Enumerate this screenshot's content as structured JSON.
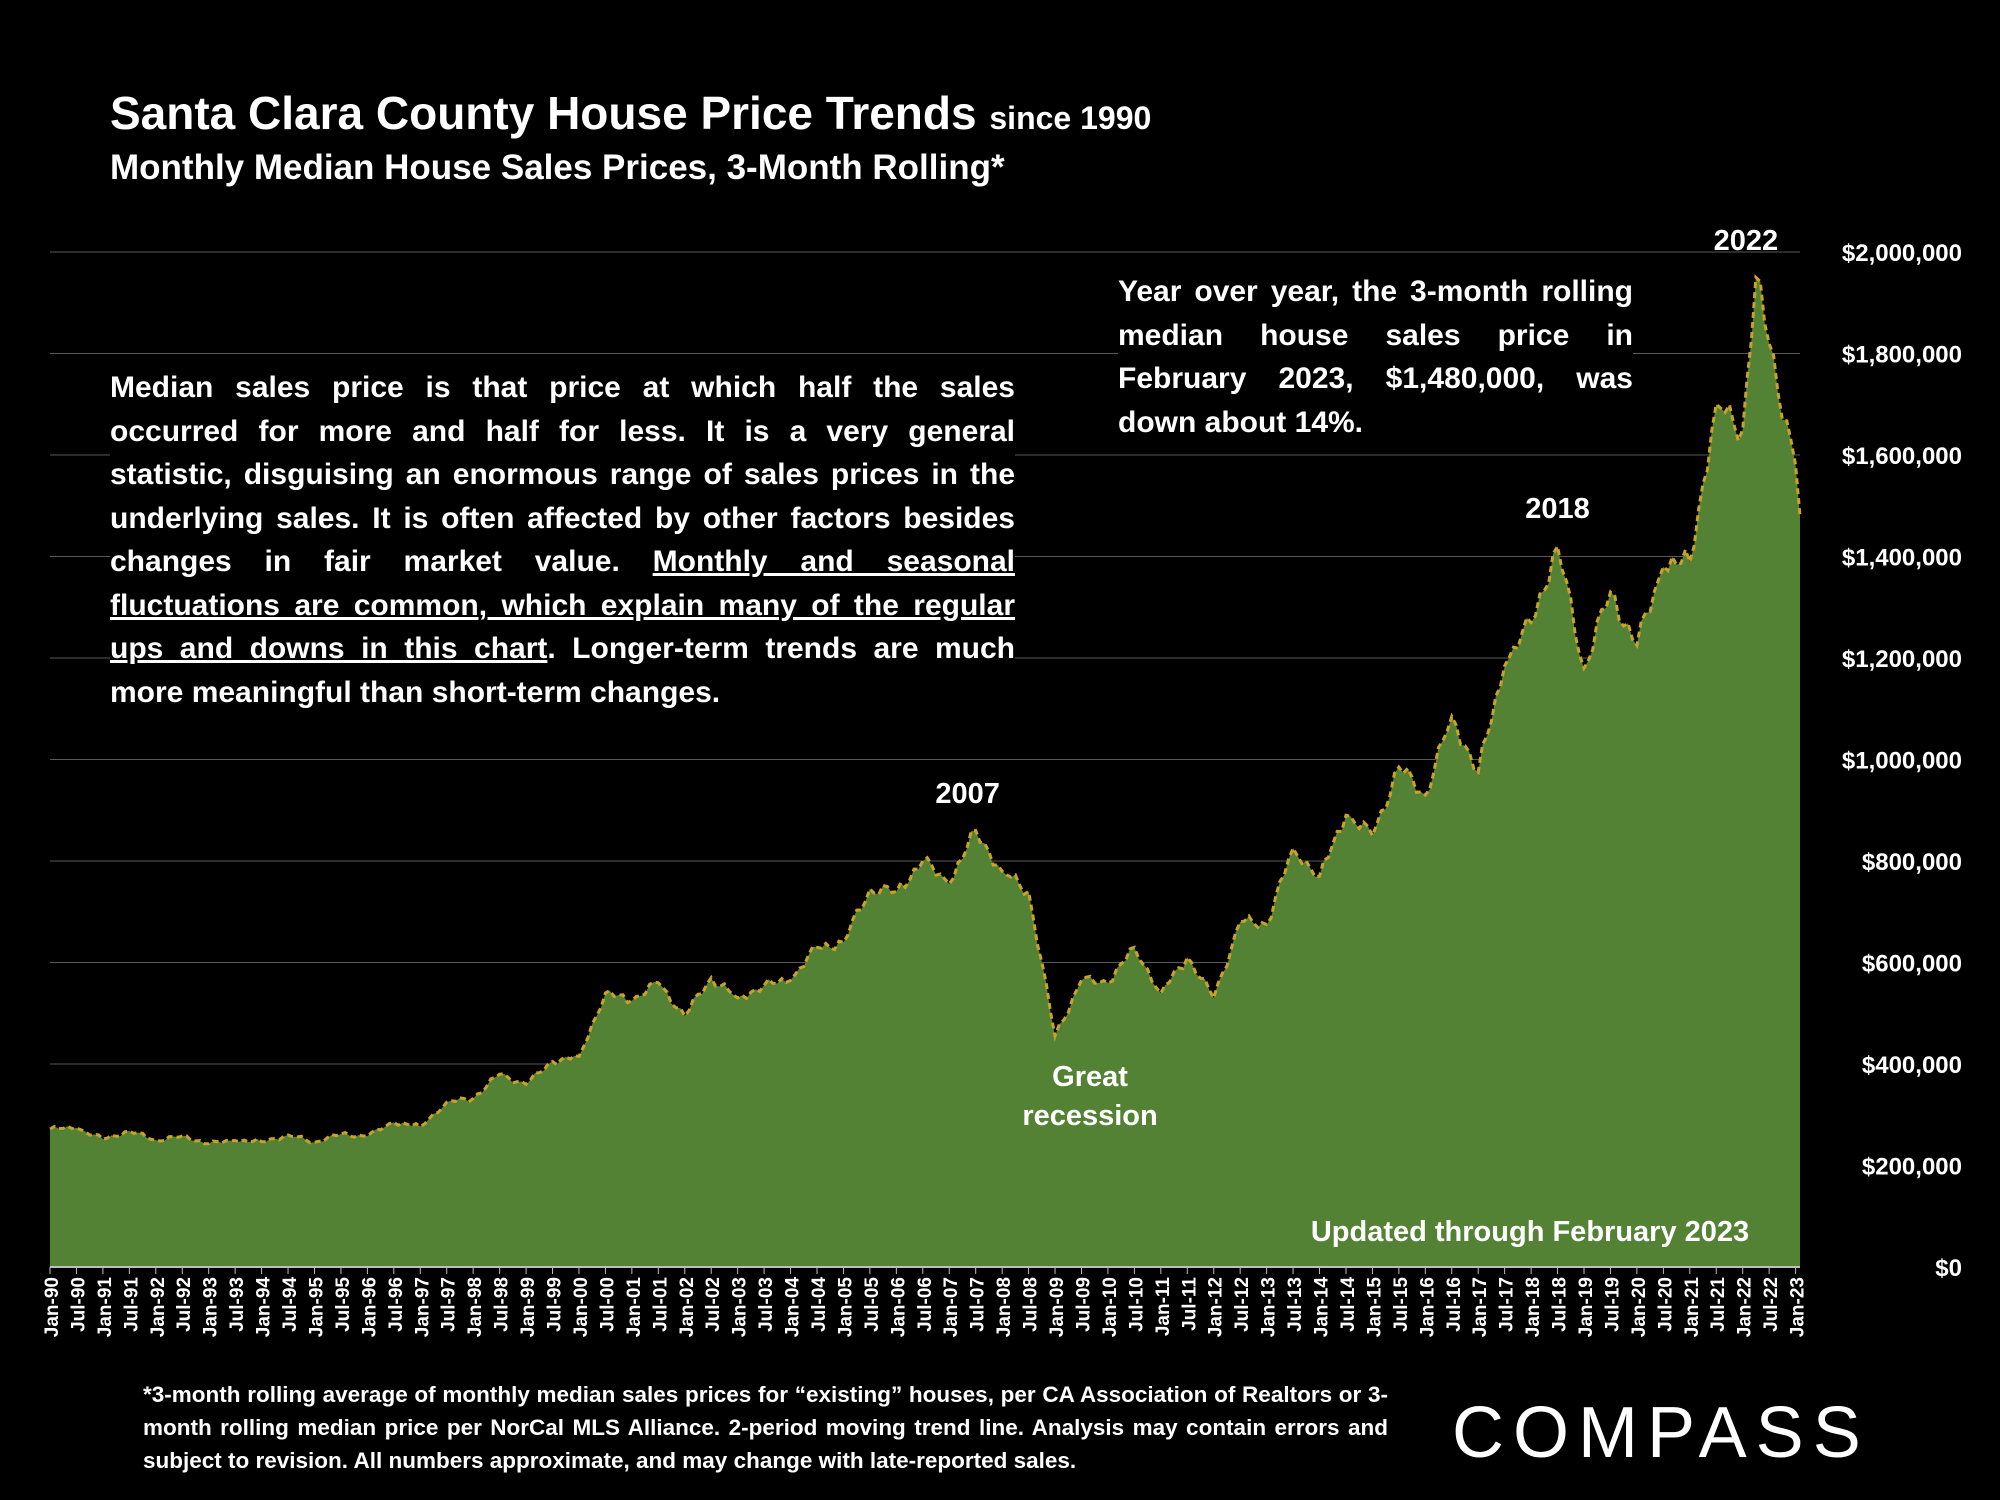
{
  "header": {
    "title": "Santa Clara County House Price Trends",
    "title_suffix": "since 1990",
    "subtitle": "Monthly Median House Sales Prices, 3-Month Rolling*"
  },
  "notes": {
    "left_plain": "Median sales price is that price at which half the sales occurred for more and half for less. It is a very general statistic, disguising an enormous range of sales prices in the underlying sales. It is often affected by other factors besides changes in fair market value. ",
    "left_underlined": "Monthly and seasonal fluctuations are common, which explain many of the regular ups and downs in this chart",
    "left_tail": ". Longer-term trends are much more meaningful than short-term changes.",
    "right": "Year over year, the 3-month rolling median house sales price in February 2023, $1,480,000, was down about 14%."
  },
  "footnote": "*3-month rolling average of monthly median sales prices for “existing” houses, per CA Association of Realtors or 3-month rolling median price per NorCal MLS Alliance. 2-period moving trend line. Analysis may contain errors and subject to revision. All numbers approximate, and may change with late-reported sales.",
  "logo": "COMPASS",
  "colors": {
    "area": "#548235",
    "trend_line": "#C9A227",
    "background": "#000000",
    "grid": "#595959"
  },
  "chart_data": {
    "type": "area",
    "x_start": "Jan-90",
    "x_end": "Feb-23",
    "ylim": [
      0,
      2000000
    ],
    "y_ticks": [
      "$0",
      "$200,000",
      "$400,000",
      "$600,000",
      "$800,000",
      "$1,000,000",
      "$1,200,000",
      "$1,400,000",
      "$1,600,000",
      "$1,800,000",
      "$2,000,000"
    ],
    "x_tick_labels": [
      "Jan-90",
      "Jul-90",
      "Jan-91",
      "Jul-91",
      "Jan-92",
      "Jul-92",
      "Jan-93",
      "Jul-93",
      "Jan-94",
      "Jul-94",
      "Jan-95",
      "Jul-95",
      "Jan-96",
      "Jul-96",
      "Jan-97",
      "Jul-97",
      "Jan-98",
      "Jul-98",
      "Jan-99",
      "Jul-99",
      "Jan-00",
      "Jul-00",
      "Jan-01",
      "Jul-01",
      "Jan-02",
      "Jul-02",
      "Jan-03",
      "Jul-03",
      "Jan-04",
      "Jul-04",
      "Jan-05",
      "Jul-05",
      "Jan-06",
      "Jul-06",
      "Jan-07",
      "Jul-07",
      "Jan-08",
      "Jul-08",
      "Jan-09",
      "Jul-09",
      "Jan-10",
      "Jul-10",
      "Jan-11",
      "Jul-11",
      "Jan-12",
      "Jul-12",
      "Jan-13",
      "Jul-13",
      "Jan-14",
      "Jul-14",
      "Jan-15",
      "Jul-15",
      "Jan-16",
      "Jul-16",
      "Jan-17",
      "Jul-17",
      "Jan-18",
      "Jul-18",
      "Jan-19",
      "Jul-19",
      "Jan-20",
      "Jul-20",
      "Jan-21",
      "Jul-21",
      "Jan-22",
      "Jul-22",
      "Jan-23"
    ],
    "series": [
      {
        "values": [
          {
            "x": "Jan-90",
            "y": 272000
          },
          {
            "x": "Jul-90",
            "y": 274000
          },
          {
            "x": "Jan-91",
            "y": 252000
          },
          {
            "x": "Jul-91",
            "y": 268000
          },
          {
            "x": "Jan-92",
            "y": 250000
          },
          {
            "x": "Jul-92",
            "y": 258000
          },
          {
            "x": "Jan-93",
            "y": 243000
          },
          {
            "x": "Jul-93",
            "y": 249000
          },
          {
            "x": "Jan-94",
            "y": 247000
          },
          {
            "x": "Jul-94",
            "y": 260000
          },
          {
            "x": "Jan-95",
            "y": 246000
          },
          {
            "x": "Jul-95",
            "y": 262000
          },
          {
            "x": "Jan-96",
            "y": 258000
          },
          {
            "x": "Jul-96",
            "y": 285000
          },
          {
            "x": "Jan-97",
            "y": 277000
          },
          {
            "x": "Jul-97",
            "y": 325000
          },
          {
            "x": "Jan-98",
            "y": 332000
          },
          {
            "x": "Jul-98",
            "y": 380000
          },
          {
            "x": "Jan-99",
            "y": 360000
          },
          {
            "x": "Jul-99",
            "y": 405000
          },
          {
            "x": "Jan-00",
            "y": 415000
          },
          {
            "x": "Jul-00",
            "y": 540000
          },
          {
            "x": "Jan-01",
            "y": 525000
          },
          {
            "x": "Jul-01",
            "y": 560000
          },
          {
            "x": "Jan-02",
            "y": 495000
          },
          {
            "x": "Jul-02",
            "y": 570000
          },
          {
            "x": "Jan-03",
            "y": 530000
          },
          {
            "x": "Jul-03",
            "y": 555000
          },
          {
            "x": "Jan-04",
            "y": 565000
          },
          {
            "x": "Jul-04",
            "y": 630000
          },
          {
            "x": "Jan-05",
            "y": 640000
          },
          {
            "x": "Jul-05",
            "y": 745000
          },
          {
            "x": "Jan-06",
            "y": 740000
          },
          {
            "x": "Jul-06",
            "y": 800000
          },
          {
            "x": "Jan-07",
            "y": 755000
          },
          {
            "x": "Jul-07",
            "y": 860000
          },
          {
            "x": "Jan-08",
            "y": 780000
          },
          {
            "x": "Jul-08",
            "y": 740000
          },
          {
            "x": "Jan-09",
            "y": 455000
          },
          {
            "x": "Jul-09",
            "y": 565000
          },
          {
            "x": "Jan-10",
            "y": 560000
          },
          {
            "x": "Jul-10",
            "y": 630000
          },
          {
            "x": "Jan-11",
            "y": 540000
          },
          {
            "x": "Jul-11",
            "y": 610000
          },
          {
            "x": "Jan-12",
            "y": 530000
          },
          {
            "x": "Jul-12",
            "y": 680000
          },
          {
            "x": "Jan-13",
            "y": 675000
          },
          {
            "x": "Jul-13",
            "y": 825000
          },
          {
            "x": "Jan-14",
            "y": 770000
          },
          {
            "x": "Jul-14",
            "y": 890000
          },
          {
            "x": "Jan-15",
            "y": 850000
          },
          {
            "x": "Jul-15",
            "y": 985000
          },
          {
            "x": "Jan-16",
            "y": 930000
          },
          {
            "x": "Jul-16",
            "y": 1085000
          },
          {
            "x": "Jan-17",
            "y": 975000
          },
          {
            "x": "Jul-17",
            "y": 1185000
          },
          {
            "x": "Jan-18",
            "y": 1270000
          },
          {
            "x": "Jul-18",
            "y": 1420000
          },
          {
            "x": "Jan-19",
            "y": 1180000
          },
          {
            "x": "Jul-19",
            "y": 1330000
          },
          {
            "x": "Jan-20",
            "y": 1225000
          },
          {
            "x": "Jul-20",
            "y": 1380000
          },
          {
            "x": "Jan-21",
            "y": 1390000
          },
          {
            "x": "Jul-21",
            "y": 1700000
          },
          {
            "x": "Jan-22",
            "y": 1650000
          },
          {
            "x": "Apr-22",
            "y": 1950000
          },
          {
            "x": "Jul-22",
            "y": 1820000
          },
          {
            "x": "Jan-23",
            "y": 1580000
          },
          {
            "x": "Feb-23",
            "y": 1480000
          }
        ]
      }
    ],
    "annotations": [
      {
        "label": "2007",
        "x": "Jul-07"
      },
      {
        "label": "Great recession",
        "x": "Jan-09"
      },
      {
        "label": "2018",
        "x": "Jul-18"
      },
      {
        "label": "2022",
        "x": "Apr-22"
      },
      {
        "label": "Updated through February 2023",
        "x": "Jul-19"
      }
    ],
    "grid": true
  }
}
